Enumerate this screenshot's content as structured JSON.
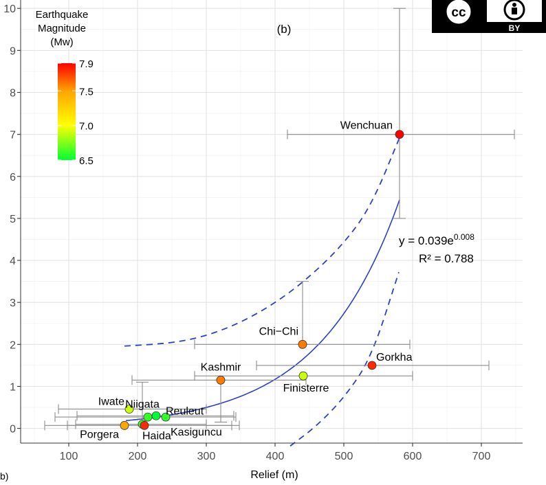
{
  "chart_data": {
    "type": "scatter",
    "title": "",
    "panel_label": "(b)",
    "xlabel": "Relief (m)",
    "ylabel": "",
    "y_axis_fragment": "b)",
    "xlim": [
      30,
      760
    ],
    "ylim": [
      -0.35,
      10.2
    ],
    "x_ticks": [
      100,
      200,
      300,
      400,
      500,
      600,
      700
    ],
    "y_ticks": [
      0,
      1,
      2,
      3,
      4,
      5,
      6,
      7,
      8,
      9,
      10
    ],
    "grid": true,
    "colorbar": {
      "title": [
        "Earthquake",
        "Magnitude",
        "(Mw)"
      ],
      "ticks": [
        6.5,
        7.0,
        7.5,
        7.9
      ],
      "tick_labels": [
        "6.5",
        "7.0",
        "7.5",
        "7.9"
      ],
      "range": [
        6.5,
        7.9
      ],
      "colors": [
        "#00ff33",
        "#ffff00",
        "#ffa500",
        "#ff0000"
      ]
    },
    "points": [
      {
        "label": "Wenchuan",
        "x": 581,
        "y": 7.0,
        "mw": 7.9,
        "xerr": [
          418,
          748
        ],
        "yerr": [
          5.0,
          10.0
        ]
      },
      {
        "label": "Chi−Chi",
        "x": 440,
        "y": 2.0,
        "mw": 7.6,
        "xerr": [
          283,
          596
        ],
        "yerr": [
          2.0,
          3.5
        ]
      },
      {
        "label": "Gorkha",
        "x": 541,
        "y": 1.5,
        "mw": 7.8,
        "xerr": [
          373,
          711
        ],
        "yerr": null
      },
      {
        "label": "Kashmir",
        "x": 321,
        "y": 1.15,
        "mw": 7.6,
        "xerr": [
          192,
          445
        ],
        "yerr": [
          0.15,
          1.15
        ]
      },
      {
        "label": "Finisterre",
        "x": 441,
        "y": 1.25,
        "mw": 6.9,
        "xerr": [
          283,
          600
        ],
        "yerr": null
      },
      {
        "label": "Iwate",
        "x": 188,
        "y": 0.46,
        "mw": 6.9,
        "xerr": [
          85,
          300
        ],
        "yerr": null
      },
      {
        "label": "Niigata",
        "x": 207,
        "y": 0.1,
        "mw": 6.6,
        "xerr": [
          110,
          300
        ],
        "yerr": [
          0.1,
          1.1
        ]
      },
      {
        "label": "Reuleut",
        "x": 227,
        "y": 0.3,
        "mw": 6.5,
        "xerr": [
          112,
          340
        ],
        "yerr": null
      },
      {
        "label": "Kasiguncu",
        "x": 241,
        "y": 0.27,
        "mw": 6.6,
        "xerr": [
          80,
          343
        ],
        "yerr": null
      },
      {
        "label": "Porgera",
        "x": 181,
        "y": 0.07,
        "mw": 7.5,
        "xerr": [
          65,
          348
        ],
        "yerr": null
      },
      {
        "label": "Haida",
        "x": 210,
        "y": 0.07,
        "mw": 7.8,
        "xerr": [
          98,
          337
        ],
        "yerr": null
      },
      {
        "label": "",
        "x": 215,
        "y": 0.27,
        "mw": 6.6,
        "xerr": null,
        "yerr": null
      }
    ],
    "fit": {
      "equation_base": "y = 0.039e",
      "equation_exponent": "0.008",
      "r2": "R² = 0.788",
      "a": 0.039,
      "b": 0.0085,
      "x_range": [
        183,
        581
      ],
      "color": "#2b3fc8"
    },
    "confidence_band": {
      "upper": [
        [
          181,
          1.96
        ],
        [
          250,
          2.03
        ],
        [
          300,
          2.2
        ],
        [
          350,
          2.52
        ],
        [
          400,
          2.98
        ],
        [
          450,
          3.6
        ],
        [
          500,
          4.4
        ],
        [
          540,
          5.3
        ],
        [
          583,
          7.0
        ]
      ],
      "lower": [
        [
          422,
          -0.42
        ],
        [
          460,
          0.05
        ],
        [
          500,
          0.72
        ],
        [
          540,
          1.68
        ],
        [
          580,
          3.72
        ]
      ],
      "color": "#2b3fc8"
    }
  },
  "license_badge": {
    "cc": "cc",
    "by": "BY",
    "background": "#000000",
    "icon_background": "#ffffff"
  }
}
